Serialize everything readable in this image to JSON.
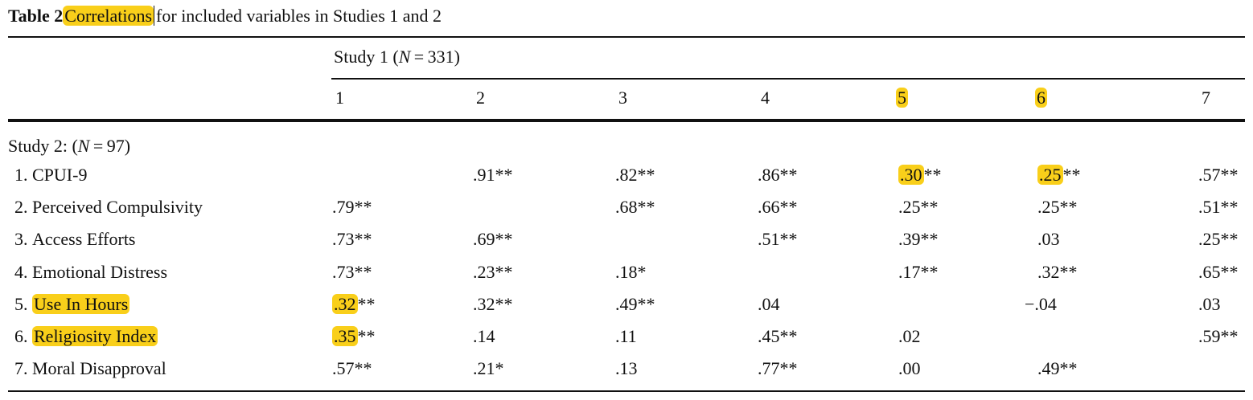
{
  "title": {
    "label": "Table 2",
    "mark": "Correlations",
    "rest": "for included variables in Studies 1 and 2"
  },
  "table": {
    "group_header": {
      "before": "Study 1 (",
      "italic": "N",
      "after": " = 331)"
    },
    "columns": [
      "1",
      "2",
      "3",
      "4",
      {
        "mark": "5"
      },
      {
        "mark": "6"
      },
      "7"
    ],
    "section": {
      "before": "Study 2: (",
      "italic": "N",
      "after": " = 97)"
    },
    "rows": [
      {
        "number": "1.",
        "name": "CPUI-9",
        "cells": [
          null,
          ".91**",
          ".82**",
          ".86**",
          {
            "mark": ".30",
            "rest": "**"
          },
          {
            "mark": ".25",
            "rest": "**"
          },
          ".57**"
        ]
      },
      {
        "number": "2.",
        "name": "Perceived Compulsivity",
        "cells": [
          ".79**",
          null,
          ".68**",
          ".66**",
          ".25**",
          ".25**",
          ".51**"
        ]
      },
      {
        "number": "3.",
        "name": "Access Efforts",
        "cells": [
          ".73**",
          ".69**",
          null,
          ".51**",
          ".39**",
          ".03",
          ".25**"
        ]
      },
      {
        "number": "4.",
        "name": "Emotional Distress",
        "cells": [
          ".73**",
          ".23**",
          ".18*",
          null,
          ".17**",
          ".32**",
          ".65**"
        ]
      },
      {
        "number": "5.",
        "name": {
          "mark": "Use In Hours"
        },
        "cells": [
          {
            "mark": ".32",
            "rest": "**"
          },
          ".32**",
          ".49**",
          ".04",
          null,
          "−.04",
          ".03"
        ]
      },
      {
        "number": "6.",
        "name": {
          "mark": "Religiosity Index"
        },
        "cells": [
          {
            "mark": ".35",
            "rest": "**"
          },
          ".14",
          ".11",
          ".45**",
          ".02",
          null,
          ".59**"
        ]
      },
      {
        "number": "7.",
        "name": "Moral Disapproval",
        "cells": [
          ".57**",
          ".21*",
          ".13",
          ".77**",
          ".00",
          ".49**",
          null
        ]
      }
    ]
  }
}
